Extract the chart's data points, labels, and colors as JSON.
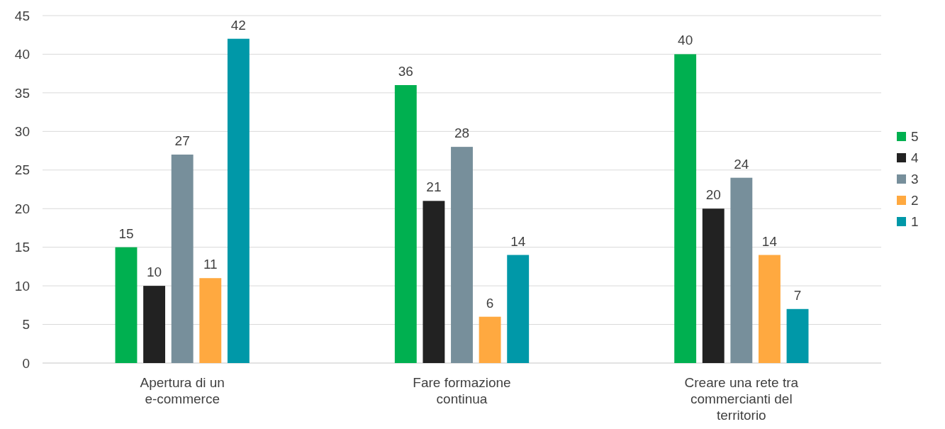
{
  "chart_data": {
    "type": "bar",
    "categories": [
      "Apertura di un e-commerce",
      "Fare formazione continua",
      "Creare una rete tra commercianti del territorio"
    ],
    "series": [
      {
        "name": "5",
        "color": "#00b050",
        "values": [
          15,
          36,
          40
        ]
      },
      {
        "name": "4",
        "color": "#222222",
        "values": [
          10,
          21,
          20
        ]
      },
      {
        "name": "3",
        "color": "#778f9b",
        "values": [
          27,
          28,
          24
        ]
      },
      {
        "name": "2",
        "color": "#ffa940",
        "values": [
          11,
          6,
          14
        ]
      },
      {
        "name": "1",
        "color": "#0098a8",
        "values": [
          42,
          14,
          7
        ]
      }
    ],
    "ylim": [
      0,
      45
    ],
    "yticks": [
      0,
      5,
      10,
      15,
      20,
      25,
      30,
      35,
      40,
      45
    ],
    "grid": "y",
    "data_labels": true,
    "legend": "right"
  }
}
